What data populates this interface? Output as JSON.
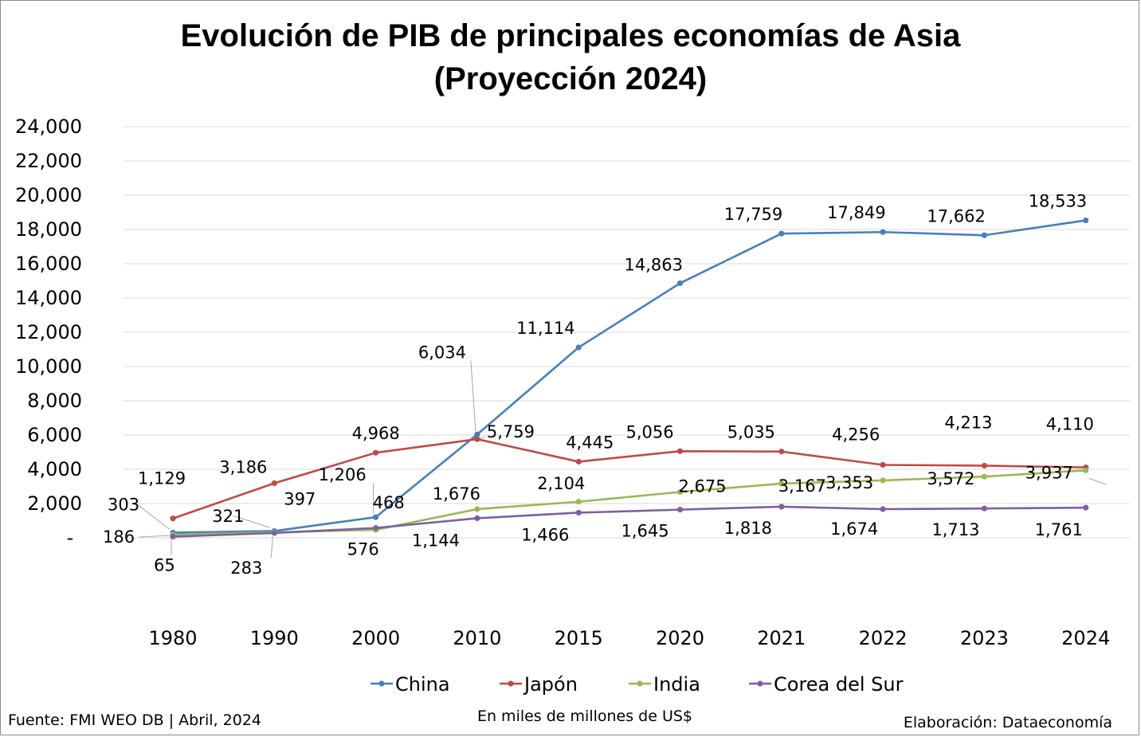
{
  "chart_data": {
    "type": "line",
    "title": "Evolución de PIB de principales economías de Asia",
    "subtitle": "(Proyección 2024)",
    "categories": [
      "1980",
      "1990",
      "2000",
      "2010",
      "2015",
      "2020",
      "2021",
      "2022",
      "2023",
      "2024"
    ],
    "ylim": [
      0,
      24000
    ],
    "yticks": [
      {
        "value": 0,
        "label": "-"
      },
      {
        "value": 2000,
        "label": "2,000"
      },
      {
        "value": 4000,
        "label": "4,000"
      },
      {
        "value": 6000,
        "label": "6,000"
      },
      {
        "value": 8000,
        "label": "8,000"
      },
      {
        "value": 10000,
        "label": "10,000"
      },
      {
        "value": 12000,
        "label": "12,000"
      },
      {
        "value": 14000,
        "label": "14,000"
      },
      {
        "value": 16000,
        "label": "16,000"
      },
      {
        "value": 18000,
        "label": "18,000"
      },
      {
        "value": 20000,
        "label": "20,000"
      },
      {
        "value": 22000,
        "label": "22,000"
      },
      {
        "value": 24000,
        "label": "24,000"
      }
    ],
    "grid": true,
    "legend_position": "bottom",
    "series": [
      {
        "name": "China",
        "color": "#4a7ebb",
        "values": [
          303,
          397,
          1206,
          6034,
          11114,
          14863,
          17759,
          17849,
          17662,
          18533
        ],
        "labels": [
          "303",
          "397",
          "1,206",
          "6,034",
          "11,114",
          "14,863",
          "17,759",
          "17,849",
          "17,662",
          "18,533"
        ]
      },
      {
        "name": "Japón",
        "color": "#be4b48",
        "values": [
          1129,
          3186,
          4968,
          5759,
          4445,
          5056,
          5035,
          4256,
          4213,
          4110
        ],
        "labels": [
          "1,129",
          "3,186",
          "4,968",
          "5,759",
          "4,445",
          "5,056",
          "5,035",
          "4,256",
          "4,213",
          "4,110"
        ]
      },
      {
        "name": "India",
        "color": "#98b954",
        "values": [
          186,
          321,
          468,
          1676,
          2104,
          2675,
          3167,
          3353,
          3572,
          3937
        ],
        "labels": [
          "186",
          "321",
          "468",
          "1,676",
          "2,104",
          "2,675",
          "3,167",
          "3,353",
          "3,572",
          "3,937"
        ]
      },
      {
        "name": "Corea del Sur",
        "color": "#7d60a0",
        "values": [
          65,
          283,
          576,
          1144,
          1466,
          1645,
          1818,
          1674,
          1713,
          1761
        ],
        "labels": [
          "65",
          "283",
          "576",
          "1,144",
          "1,466",
          "1,645",
          "1,818",
          "1,674",
          "1,713",
          "1,761"
        ]
      }
    ]
  },
  "footer": {
    "source": "Fuente: FMI WEO DB | Abril, 2024",
    "units": "En miles de millones de US$",
    "credit": "Elaboración: Dataeconomía"
  }
}
